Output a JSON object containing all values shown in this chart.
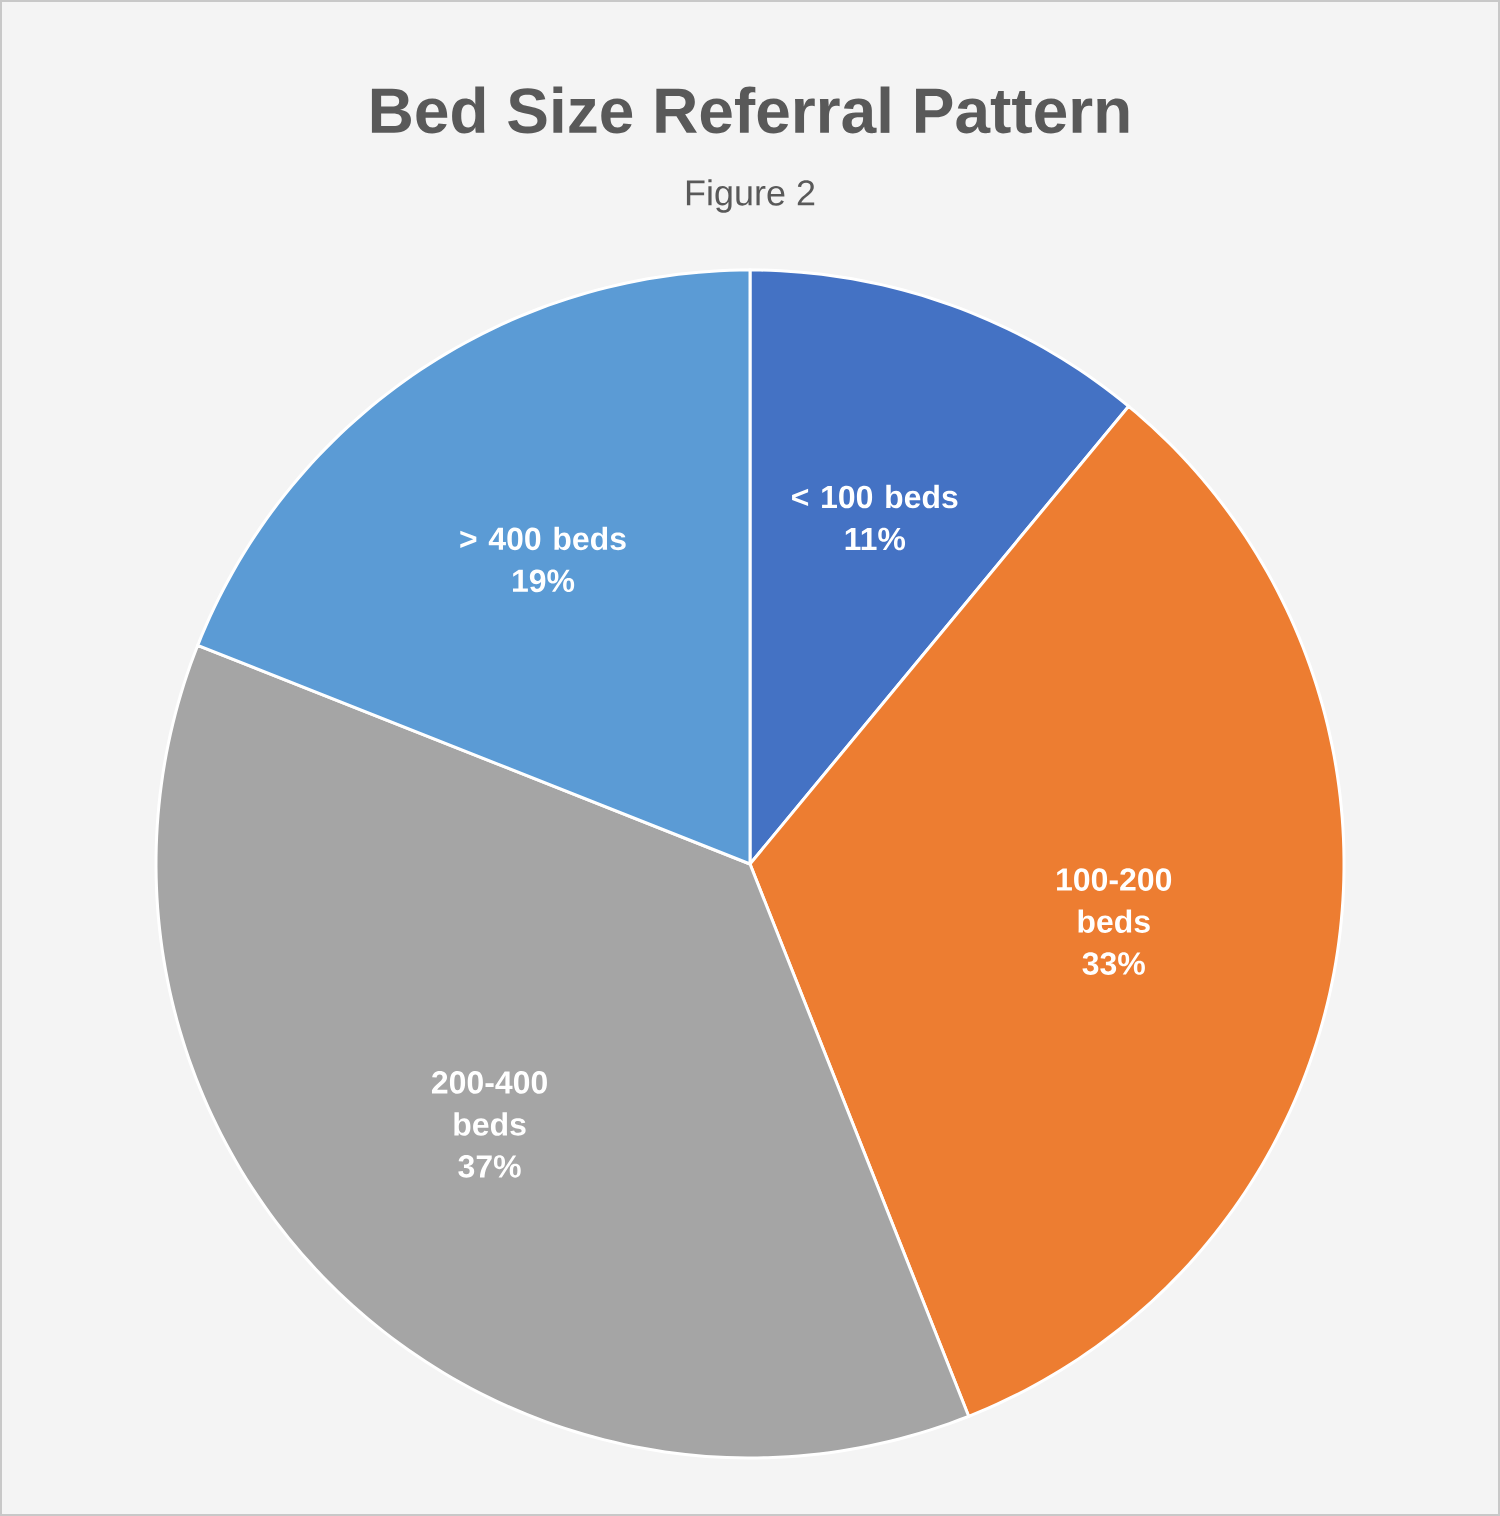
{
  "chart_data": {
    "type": "pie",
    "title": "Bed Size Referral Pattern",
    "subtitle": "Figure 2",
    "categories": [
      "< 100 beds",
      "100-200 beds",
      "200-400 beds",
      "> 400 beds"
    ],
    "values": [
      11,
      33,
      37,
      19
    ],
    "value_labels": [
      "11%",
      "33%",
      "37%",
      "19%"
    ],
    "colors": [
      "#4472c4",
      "#ed7d31",
      "#a5a5a5",
      "#5b9bd5"
    ],
    "legend": false
  }
}
